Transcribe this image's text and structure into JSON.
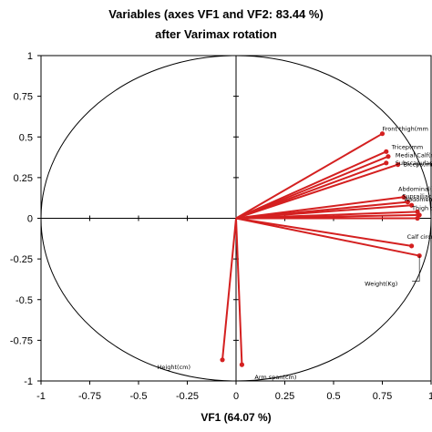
{
  "chart_data": {
    "type": "scatter",
    "title": "Variables (axes VF1 and VF2: 83.44 %)",
    "subtitle": "after Varimax rotation",
    "xlabel": "VF1 (64.07 %)",
    "ylabel": "",
    "xlim": [
      -1,
      1
    ],
    "ylim": [
      -1,
      1
    ],
    "x_ticks": [
      "-1",
      "-0.75",
      "-0.5",
      "-0.25",
      "0",
      "0.25",
      "0.5",
      "0.75",
      "1"
    ],
    "y_ticks": [
      "1",
      "0.75",
      "0.5",
      "0.25",
      "0",
      "-0.25",
      "-0.5",
      "-0.75",
      "-1"
    ],
    "grid": false,
    "correlation_circle": true,
    "series_color": "#d42020",
    "variables": [
      {
        "label": "Front thigh(mm",
        "x": 0.75,
        "y": 0.52
      },
      {
        "label": "Tricep(mm",
        "x": 0.77,
        "y": 0.41
      },
      {
        "label": "Medial Calf(m",
        "x": 0.78,
        "y": 0.38
      },
      {
        "label": "Subscapular(",
        "x": 0.77,
        "y": 0.34
      },
      {
        "label": "Biceps(mm",
        "x": 0.83,
        "y": 0.33
      },
      {
        "label": "Abdominal(m",
        "x": 0.86,
        "y": 0.13
      },
      {
        "label": "Suprailiac(m",
        "x": 0.88,
        "y": 0.1
      },
      {
        "label": "Abdomen w",
        "x": 0.9,
        "y": 0.08
      },
      {
        "label": "Thigh cc",
        "x": 0.93,
        "y": 0.04
      },
      {
        "label": "",
        "x": 0.94,
        "y": 0.02
      },
      {
        "label": "",
        "x": 0.93,
        "y": 0.0
      },
      {
        "label": "Calf circumfrnc(",
        "x": 0.9,
        "y": -0.17
      },
      {
        "label": "Weight(Kg)",
        "x": 0.94,
        "y": -0.23
      },
      {
        "label": "Height(cm)",
        "x": -0.07,
        "y": -0.87
      },
      {
        "label": "Arm span(cm)",
        "x": 0.03,
        "y": -0.9
      }
    ]
  }
}
